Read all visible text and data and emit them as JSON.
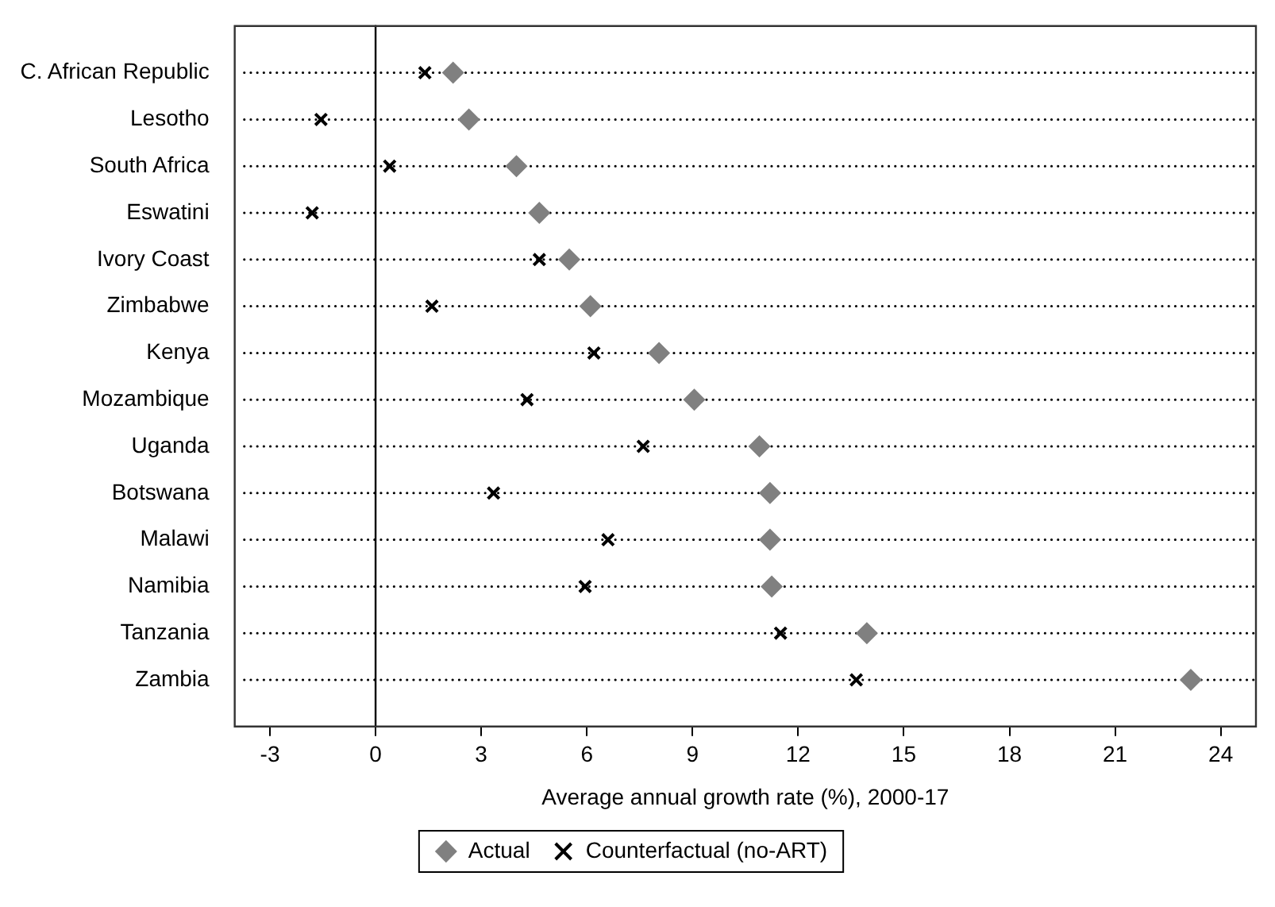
{
  "chart_data": {
    "type": "scatter",
    "orientation": "horizontal",
    "xlabel": "Average annual growth rate (%), 2000-17",
    "categories": [
      "C. African Republic",
      "Lesotho",
      "South Africa",
      "Eswatini",
      "Ivory Coast",
      "Zimbabwe",
      "Kenya",
      "Mozambique",
      "Uganda",
      "Botswana",
      "Malawi",
      "Namibia",
      "Tanzania",
      "Zambia"
    ],
    "series": [
      {
        "name": "Actual",
        "color": "#808080",
        "marker": "diamond",
        "values": [
          2.2,
          2.65,
          4.0,
          4.65,
          5.5,
          6.1,
          8.05,
          9.05,
          10.9,
          11.2,
          11.2,
          11.25,
          13.95,
          23.15
        ]
      },
      {
        "name": "Counterfactual (no-ART)",
        "color": "#000000",
        "marker": "cross",
        "values": [
          1.4,
          -1.55,
          0.4,
          -1.8,
          4.65,
          1.6,
          6.2,
          4.3,
          7.6,
          3.35,
          6.6,
          5.95,
          11.5,
          13.65
        ]
      }
    ],
    "xlim": [
      -4,
      25
    ],
    "xticks": [
      -3,
      0,
      3,
      6,
      9,
      12,
      15,
      18,
      21,
      24
    ],
    "ref_lines": [
      {
        "axis": "x",
        "value": 0,
        "color": "#000000",
        "line_style": "solid"
      }
    ],
    "grid": "y",
    "line_style": "dotted",
    "legend": "bottom"
  }
}
